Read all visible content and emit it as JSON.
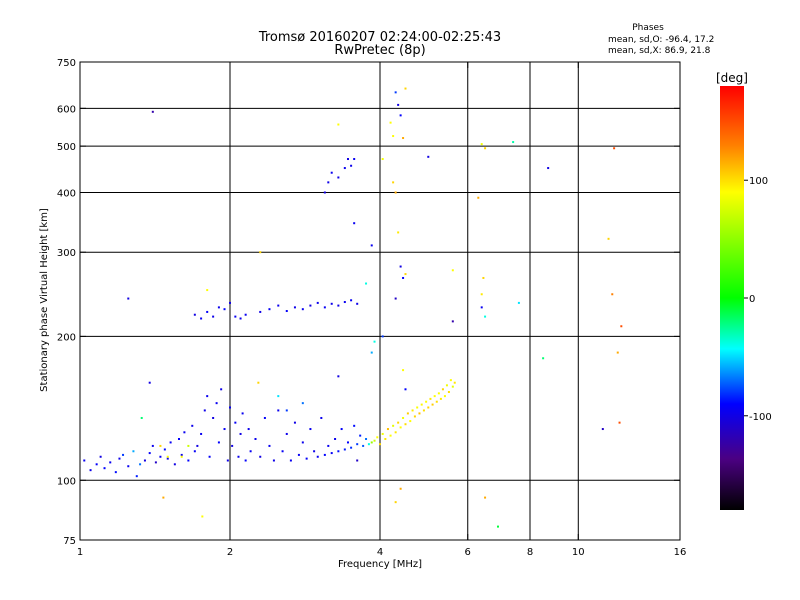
{
  "chart_data": {
    "type": "scatter",
    "title": "Tromsø 20160207 02:24:00-02:25:43",
    "subtitle": "RwPretec (8p)",
    "info": {
      "heading": "Phases",
      "line_o": "mean, sd,O: -96.4, 17.2",
      "line_x": "mean, sd,X:  86.9, 21.8"
    },
    "xlabel": "Frequency [MHz]",
    "ylabel": "Stationary phase Virtual Height [km]",
    "x_scale": "log",
    "y_scale": "log",
    "xlim": [
      1,
      16
    ],
    "ylim": [
      75,
      750
    ],
    "x_ticks": [
      1,
      2,
      4,
      6,
      8,
      10,
      16
    ],
    "x_tick_labels": [
      "1",
      "2",
      "4",
      "6",
      "8",
      "10",
      "16"
    ],
    "x_grid": [
      2,
      4,
      6,
      8,
      10
    ],
    "y_ticks": [
      75,
      100,
      200,
      300,
      400,
      500,
      600,
      750
    ],
    "y_tick_labels": [
      "75",
      "100",
      "200",
      "300",
      "400",
      "500",
      "600",
      "750"
    ],
    "y_grid": [
      100,
      200,
      300,
      400,
      500,
      600
    ],
    "grid": true,
    "colorbar": {
      "label": "[deg]",
      "range": [
        -180,
        180
      ],
      "ticks": [
        100,
        0,
        -100
      ],
      "tick_labels": [
        "100",
        "0",
        "-100"
      ]
    },
    "series": [
      {
        "points": [
          [
            1.02,
            110,
            -95
          ],
          [
            1.05,
            105,
            -98
          ],
          [
            1.08,
            108,
            -92
          ],
          [
            1.1,
            112,
            -100
          ],
          [
            1.12,
            106,
            -90
          ],
          [
            1.15,
            109,
            -95
          ],
          [
            1.18,
            104,
            -88
          ],
          [
            1.2,
            111,
            -97
          ],
          [
            1.22,
            113,
            -80
          ],
          [
            1.25,
            107,
            -95
          ],
          [
            1.28,
            115,
            -60
          ],
          [
            1.3,
            102,
            -85
          ],
          [
            1.32,
            108,
            -70
          ],
          [
            1.35,
            110,
            -100
          ],
          [
            1.38,
            114,
            -92
          ],
          [
            1.4,
            118,
            -96
          ],
          [
            1.42,
            109,
            -110
          ],
          [
            1.45,
            112,
            -95
          ],
          [
            1.48,
            116,
            -88
          ],
          [
            1.5,
            111,
            -99
          ],
          [
            1.52,
            120,
            -94
          ],
          [
            1.55,
            108,
            -100
          ],
          [
            1.58,
            122,
            -91
          ],
          [
            1.6,
            113,
            -96
          ],
          [
            1.62,
            126,
            -95
          ],
          [
            1.65,
            110,
            -90
          ],
          [
            1.68,
            130,
            -97
          ],
          [
            1.7,
            115,
            -93
          ],
          [
            1.72,
            118,
            -100
          ],
          [
            1.75,
            125,
            -95
          ],
          [
            1.78,
            140,
            -98
          ],
          [
            1.8,
            150,
            -96
          ],
          [
            1.82,
            112,
            -92
          ],
          [
            1.85,
            135,
            -100
          ],
          [
            1.88,
            145,
            -95
          ],
          [
            1.9,
            120,
            -90
          ],
          [
            1.92,
            155,
            -98
          ],
          [
            1.95,
            128,
            -94
          ],
          [
            1.98,
            110,
            -97
          ],
          [
            2.0,
            142,
            -95
          ],
          [
            2.02,
            118,
            -100
          ],
          [
            2.05,
            132,
            -93
          ],
          [
            2.08,
            112,
            -96
          ],
          [
            2.1,
            125,
            -99
          ],
          [
            2.12,
            138,
            -95
          ],
          [
            2.15,
            110,
            -91
          ],
          [
            2.18,
            128,
            -97
          ],
          [
            2.2,
            115,
            -94
          ],
          [
            2.25,
            122,
            -96
          ],
          [
            2.3,
            112,
            -100
          ],
          [
            2.35,
            135,
            -92
          ],
          [
            2.4,
            118,
            -95
          ],
          [
            2.45,
            110,
            -98
          ],
          [
            2.5,
            140,
            -96
          ],
          [
            2.55,
            115,
            -93
          ],
          [
            2.6,
            125,
            -97
          ],
          [
            2.65,
            110,
            -95
          ],
          [
            2.7,
            132,
            -99
          ],
          [
            2.75,
            113,
            -94
          ],
          [
            2.8,
            120,
            -96
          ],
          [
            2.85,
            111,
            -92
          ],
          [
            2.9,
            128,
            -95
          ],
          [
            2.95,
            115,
            -97
          ],
          [
            3.0,
            112,
            -94
          ],
          [
            3.05,
            135,
            -96
          ],
          [
            3.1,
            113,
            -90
          ],
          [
            3.15,
            118,
            -95
          ],
          [
            3.2,
            114,
            -93
          ],
          [
            3.25,
            122,
            -96
          ],
          [
            3.3,
            115,
            -88
          ],
          [
            3.35,
            128,
            -92
          ],
          [
            3.4,
            116,
            -85
          ],
          [
            3.45,
            120,
            -90
          ],
          [
            3.5,
            117,
            -82
          ],
          [
            3.55,
            130,
            -88
          ],
          [
            3.6,
            119,
            -80
          ],
          [
            3.65,
            124,
            -85
          ],
          [
            3.7,
            118,
            -75
          ],
          [
            3.75,
            122,
            -70
          ],
          [
            3.8,
            119,
            -40
          ],
          [
            3.85,
            120,
            60
          ],
          [
            3.9,
            121,
            80
          ],
          [
            3.95,
            123,
            100
          ],
          [
            4.0,
            119,
            110
          ],
          [
            4.05,
            125,
            95
          ],
          [
            4.1,
            122,
            105
          ],
          [
            4.15,
            128,
            115
          ],
          [
            4.2,
            124,
            100
          ],
          [
            4.25,
            130,
            90
          ],
          [
            4.3,
            126,
            105
          ],
          [
            4.35,
            132,
            110
          ],
          [
            4.4,
            129,
            100
          ],
          [
            4.45,
            135,
            95
          ],
          [
            4.5,
            131,
            108
          ],
          [
            4.55,
            138,
            112
          ],
          [
            4.6,
            133,
            100
          ],
          [
            4.65,
            140,
            105
          ],
          [
            4.7,
            136,
            110
          ],
          [
            4.75,
            142,
            98
          ],
          [
            4.8,
            138,
            115
          ],
          [
            4.85,
            144,
            102
          ],
          [
            4.9,
            140,
            108
          ],
          [
            4.95,
            146,
            100
          ],
          [
            5.0,
            142,
            110
          ],
          [
            5.05,
            148,
            105
          ],
          [
            5.1,
            144,
            112
          ],
          [
            5.15,
            150,
            100
          ],
          [
            5.2,
            146,
            108
          ],
          [
            5.25,
            152,
            98
          ],
          [
            5.3,
            148,
            105
          ],
          [
            5.35,
            155,
            110
          ],
          [
            5.4,
            150,
            100
          ],
          [
            5.45,
            158,
            95
          ],
          [
            5.5,
            153,
            108
          ],
          [
            5.55,
            162,
            100
          ],
          [
            5.6,
            157,
            90
          ],
          [
            5.65,
            160,
            105
          ],
          [
            1.7,
            222,
            -100
          ],
          [
            1.75,
            218,
            -95
          ],
          [
            1.8,
            225,
            -92
          ],
          [
            1.85,
            220,
            -98
          ],
          [
            1.9,
            230,
            -96
          ],
          [
            1.95,
            228,
            -90
          ],
          [
            2.0,
            235,
            -100
          ],
          [
            2.05,
            220,
            -94
          ],
          [
            2.1,
            218,
            -97
          ],
          [
            2.15,
            222,
            -95
          ],
          [
            2.3,
            225,
            -99
          ],
          [
            2.4,
            228,
            -93
          ],
          [
            2.5,
            232,
            -96
          ],
          [
            2.6,
            226,
            -92
          ],
          [
            2.7,
            230,
            -98
          ],
          [
            2.8,
            228,
            -95
          ],
          [
            2.9,
            232,
            -100
          ],
          [
            3.0,
            235,
            -96
          ],
          [
            3.1,
            230,
            -94
          ],
          [
            3.2,
            234,
            -97
          ],
          [
            3.3,
            232,
            -99
          ],
          [
            3.4,
            236,
            -95
          ],
          [
            3.5,
            238,
            -93
          ],
          [
            3.6,
            234,
            -98
          ],
          [
            3.1,
            400,
            -100
          ],
          [
            3.15,
            420,
            -98
          ],
          [
            3.2,
            440,
            -95
          ],
          [
            3.3,
            430,
            -99
          ],
          [
            3.4,
            450,
            -96
          ],
          [
            3.45,
            470,
            -100
          ],
          [
            3.5,
            455,
            -97
          ],
          [
            3.55,
            470,
            -95
          ],
          [
            3.3,
            555,
            100
          ],
          [
            3.85,
            310,
            -95
          ],
          [
            4.05,
            470,
            95
          ],
          [
            4.2,
            560,
            100
          ],
          [
            4.25,
            525,
            100
          ],
          [
            4.3,
            648,
            -80
          ],
          [
            4.35,
            610,
            -100
          ],
          [
            4.4,
            580,
            -90
          ],
          [
            4.45,
            520,
            120
          ],
          [
            4.5,
            660,
            110
          ],
          [
            4.25,
            420,
            110
          ],
          [
            4.3,
            400,
            120
          ],
          [
            4.35,
            330,
            105
          ],
          [
            4.4,
            280,
            -100
          ],
          [
            4.45,
            265,
            -90
          ],
          [
            4.5,
            270,
            110
          ],
          [
            5.0,
            475,
            -100
          ],
          [
            5.6,
            215,
            -120
          ],
          [
            5.6,
            275,
            100
          ],
          [
            6.3,
            390,
            120
          ],
          [
            6.4,
            505,
            95
          ],
          [
            6.5,
            495,
            110
          ],
          [
            6.45,
            265,
            110
          ],
          [
            6.4,
            245,
            105
          ],
          [
            6.4,
            230,
            -95
          ],
          [
            6.5,
            220,
            -40
          ],
          [
            6.5,
            92,
            120
          ],
          [
            6.9,
            80,
            -10
          ],
          [
            7.6,
            235,
            -50
          ],
          [
            7.4,
            510,
            -30
          ],
          [
            8.5,
            180,
            -20
          ],
          [
            8.7,
            450,
            -100
          ],
          [
            11.5,
            320,
            110
          ],
          [
            11.7,
            245,
            130
          ],
          [
            12.2,
            210,
            150
          ],
          [
            12.0,
            185,
            120
          ],
          [
            11.8,
            495,
            150
          ],
          [
            12.1,
            132,
            150
          ],
          [
            11.2,
            128,
            -110
          ],
          [
            1.33,
            135,
            -20
          ],
          [
            1.4,
            590,
            -120
          ],
          [
            1.47,
            92,
            120
          ],
          [
            1.76,
            84,
            100
          ],
          [
            1.8,
            250,
            100
          ],
          [
            2.28,
            160,
            110
          ],
          [
            2.3,
            300,
            110
          ],
          [
            1.25,
            240,
            -100
          ],
          [
            1.38,
            160,
            -100
          ],
          [
            3.3,
            165,
            -100
          ],
          [
            3.55,
            345,
            -95
          ],
          [
            3.75,
            258,
            -40
          ],
          [
            3.85,
            185,
            -60
          ],
          [
            3.9,
            195,
            -40
          ],
          [
            4.05,
            200,
            -80
          ],
          [
            4.3,
            240,
            -110
          ],
          [
            4.45,
            170,
            100
          ],
          [
            4.5,
            155,
            -90
          ],
          [
            3.6,
            110,
            -110
          ],
          [
            2.6,
            140,
            -80
          ],
          [
            2.8,
            145,
            -70
          ],
          [
            2.5,
            150,
            -50
          ],
          [
            1.6,
            112,
            100
          ],
          [
            1.65,
            118,
            80
          ],
          [
            1.45,
            118,
            110
          ],
          [
            1.5,
            112,
            100
          ],
          [
            4.4,
            96,
            120
          ],
          [
            4.3,
            90,
            110
          ]
        ]
      }
    ]
  }
}
